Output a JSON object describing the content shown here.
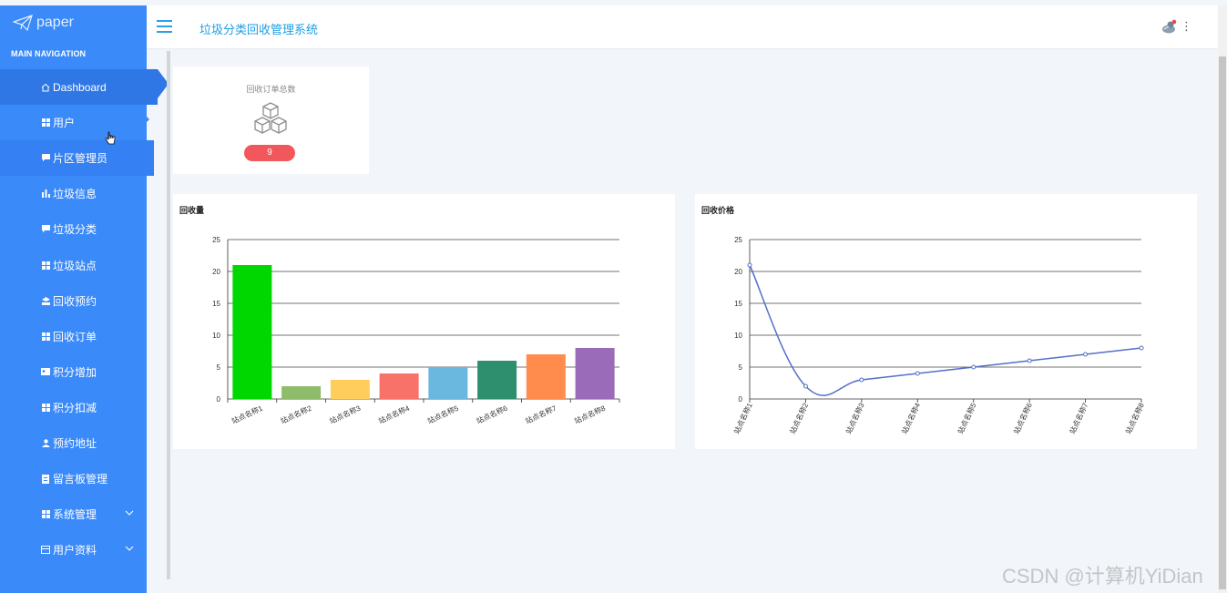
{
  "sidebar": {
    "logo_text": "paper",
    "section_label": "MAIN NAVIGATION",
    "items": [
      {
        "label": "Dashboard",
        "icon": "home-icon"
      },
      {
        "label": "用户",
        "icon": "grid-icon"
      },
      {
        "label": "片区管理员",
        "icon": "comment-icon"
      },
      {
        "label": "垃圾信息",
        "icon": "bar-icon"
      },
      {
        "label": "垃圾分类",
        "icon": "comment-icon"
      },
      {
        "label": "垃圾站点",
        "icon": "grid-icon"
      },
      {
        "label": "回收预约",
        "icon": "stack-icon"
      },
      {
        "label": "回收订单",
        "icon": "grid-icon"
      },
      {
        "label": "积分增加",
        "icon": "id-card-icon"
      },
      {
        "label": "积分扣减",
        "icon": "grid-icon"
      },
      {
        "label": "预约地址",
        "icon": "user-icon"
      },
      {
        "label": "留言板管理",
        "icon": "doc-icon"
      },
      {
        "label": "系统管理",
        "icon": "grid-icon"
      },
      {
        "label": "用户资料",
        "icon": "card-icon"
      }
    ]
  },
  "header": {
    "title": "垃圾分类回收管理系统",
    "more": "⋮"
  },
  "stat": {
    "title": "回收订单总数",
    "value": "9",
    "icon": "cubes-icon"
  },
  "chart_data": [
    {
      "type": "bar",
      "title": "回收量",
      "categories": [
        "站点名称1",
        "站点名称2",
        "站点名称3",
        "站点名称4",
        "站点名称5",
        "站点名称6",
        "站点名称7",
        "站点名称8"
      ],
      "values": [
        21,
        2,
        3,
        4,
        5,
        6,
        7,
        8
      ],
      "colors": [
        "#00d600",
        "#8fbc6a",
        "#ffcd5c",
        "#f8726a",
        "#6ab7e0",
        "#2e8f6e",
        "#ff8c4d",
        "#9a6bb8"
      ],
      "ylim": [
        0,
        25
      ],
      "yticks": [
        0,
        5,
        10,
        15,
        20,
        25
      ],
      "grid": true
    },
    {
      "type": "line",
      "title": "回收价格",
      "categories": [
        "站点名称1",
        "站点名称2",
        "站点名称3",
        "站点名称4",
        "站点名称5",
        "站点名称6",
        "站点名称7",
        "站点名称8"
      ],
      "values": [
        21,
        2,
        3,
        4,
        5,
        6,
        7,
        8
      ],
      "color": "#5470c6",
      "smooth": true,
      "ylim": [
        0,
        25
      ],
      "yticks": [
        0,
        5,
        10,
        15,
        20,
        25
      ],
      "grid": true
    }
  ],
  "watermark": "CSDN @计算机YiDian"
}
